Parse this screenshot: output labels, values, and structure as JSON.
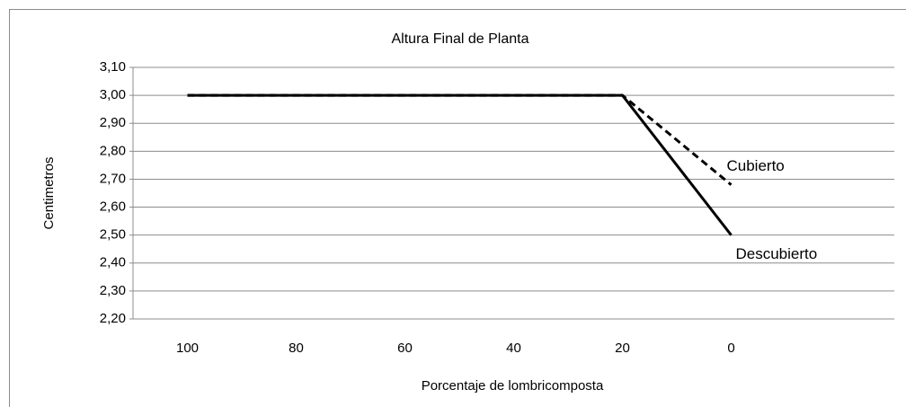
{
  "chart_data": {
    "type": "line",
    "title": "Altura Final de Planta",
    "x_label": "Porcentaje de lombricomposta",
    "y_label": "Centimetros",
    "categories": [
      "100",
      "80",
      "60",
      "40",
      "20",
      "0",
      null
    ],
    "series": [
      {
        "name": "Cubierto",
        "color": "#000000",
        "dashed": true,
        "values": [
          3.0,
          3.0,
          3.0,
          3.0,
          3.0,
          2.68,
          null
        ]
      },
      {
        "name": "Descubierto",
        "color": "#000000",
        "dashed": false,
        "values": [
          3.0,
          3.0,
          3.0,
          3.0,
          3.0,
          2.5,
          null
        ]
      }
    ],
    "ylim": [
      2.2,
      3.1
    ],
    "yticks": [
      {
        "value": 2.2,
        "label": "2,20"
      },
      {
        "value": 2.3,
        "label": "2,30"
      },
      {
        "value": 2.4,
        "label": "2,40"
      },
      {
        "value": 2.5,
        "label": "2,50"
      },
      {
        "value": 2.6,
        "label": "2,60"
      },
      {
        "value": 2.7,
        "label": "2,70"
      },
      {
        "value": 2.8,
        "label": "2,80"
      },
      {
        "value": 2.9,
        "label": "2,90"
      },
      {
        "value": 3.0,
        "label": "3,00"
      },
      {
        "value": 3.1,
        "label": "3,10"
      }
    ],
    "grid": true
  }
}
